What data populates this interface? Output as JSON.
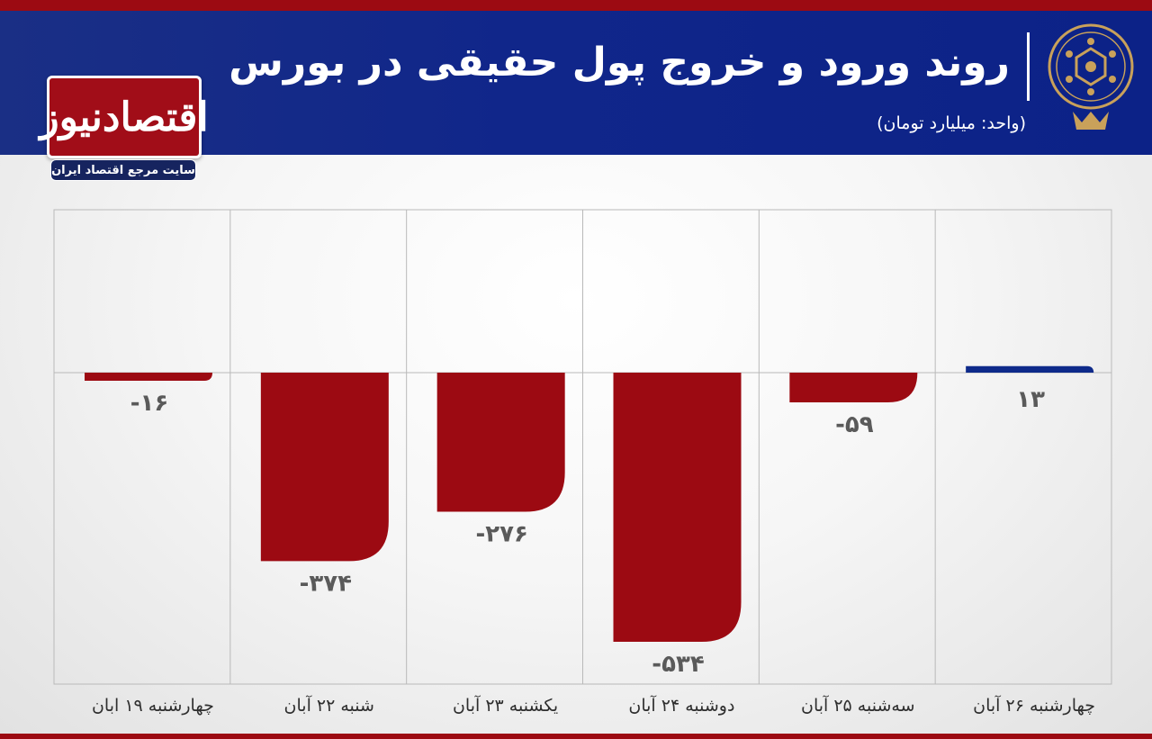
{
  "header": {
    "title": "روند ورود و خروج پول حقیقی در بورس",
    "subtitle": "(واحد: میلیارد تومان)"
  },
  "logo": {
    "name": "اقتصادنیوز",
    "tagline": "سایت مرجع اقتصاد ایران"
  },
  "colors": {
    "negative": "#9c0a12",
    "positive": "#0e2a8a",
    "header": "#10268a"
  },
  "chart_data": {
    "type": "bar",
    "title": "روند ورود و خروج پول حقیقی در بورس",
    "ylabel": "(واحد: میلیارد تومان)",
    "categories": [
      "چهارشنبه ۱۹ ابان",
      "شنبه ۲۲ آبان",
      "یکشنبه ۲۳ آبان",
      "دوشنبه ۲۴ آبان",
      "سه‌شنبه ۲۵ آبان",
      "چهارشنبه ۲۶ آبان"
    ],
    "values": [
      -16,
      -374,
      -276,
      -534,
      -59,
      13
    ],
    "value_labels": [
      "-۱۶",
      "-۳۷۴",
      "-۲۷۶",
      "-۵۳۴",
      "-۵۹",
      "۱۳"
    ],
    "grid": true,
    "legend": "none"
  }
}
